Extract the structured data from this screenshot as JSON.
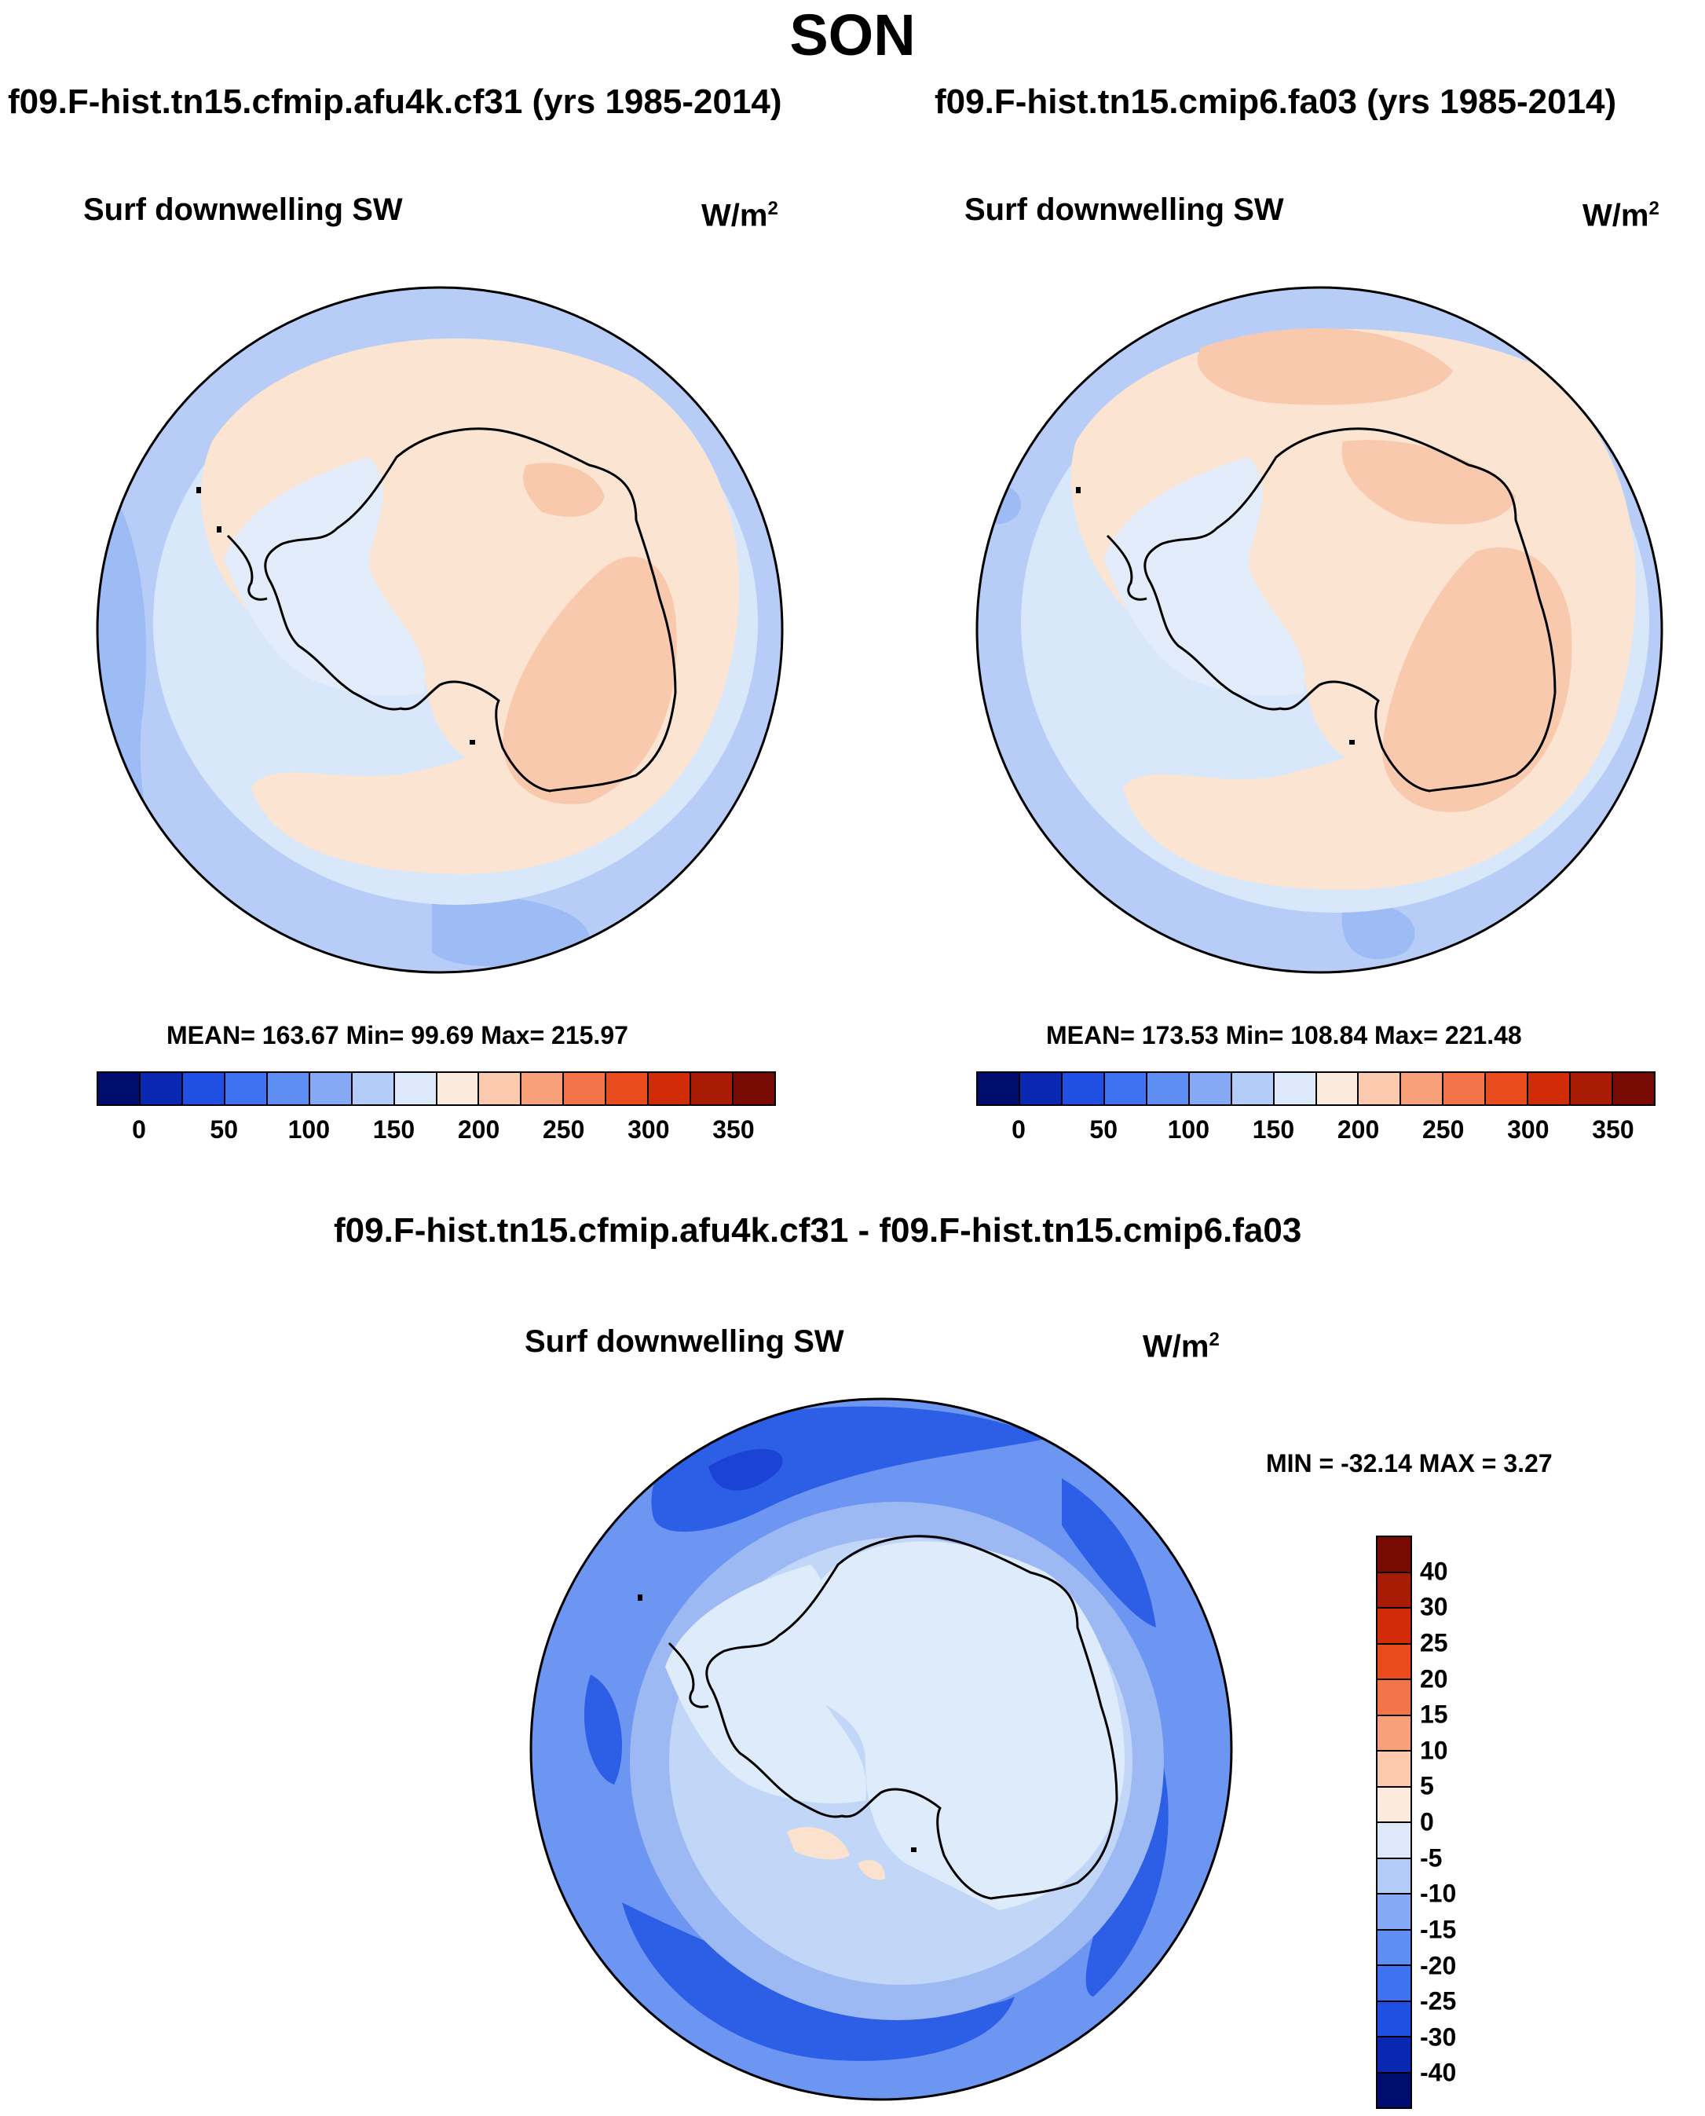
{
  "title": "SON",
  "panels": [
    {
      "case_title": "f09.F-hist.tn15.cfmip.afu4k.cf31 (yrs 1985-2014)",
      "variable": "Surf downwelling SW",
      "units_base": "W/m",
      "units_exp": "2",
      "stats": "MEAN= 163.67  Min=  99.69  Max= 215.97"
    },
    {
      "case_title": "f09.F-hist.tn15.cmip6.fa03 (yrs 1985-2014)",
      "variable": "Surf downwelling SW",
      "units_base": "W/m",
      "units_exp": "2",
      "stats": "MEAN= 173.53  Min= 108.84  Max= 221.48"
    }
  ],
  "diff": {
    "case_title": "f09.F-hist.tn15.cfmip.afu4k.cf31 - f09.F-hist.tn15.cmip6.fa03",
    "variable": "Surf downwelling SW",
    "units_base": "W/m",
    "units_exp": "2",
    "stats": "MIN = -32.14 MAX =   3.27"
  },
  "colorbar_abs": {
    "colors": [
      "#000c6e",
      "#0927b0",
      "#1f4fe3",
      "#3e72f0",
      "#5f8ef2",
      "#86a9f5",
      "#b3ccf7",
      "#dde9fa",
      "#fcebdc",
      "#fbcaae",
      "#f8a07a",
      "#f4744a",
      "#ea4b1c",
      "#d12c07",
      "#a81b05",
      "#770a02"
    ],
    "labels": [
      "0",
      "50",
      "100",
      "150",
      "200",
      "250",
      "300",
      "350"
    ]
  },
  "colorbar_diff": {
    "colors": [
      "#770a02",
      "#a81b05",
      "#d12c07",
      "#ea4b1c",
      "#f4744a",
      "#f8a07a",
      "#fbcaae",
      "#fcebdc",
      "#dde9fa",
      "#b3ccf7",
      "#86a9f5",
      "#5f8ef2",
      "#3e72f0",
      "#1f4fe3",
      "#0927b0",
      "#000c6e"
    ],
    "labels": [
      "40",
      "30",
      "25",
      "20",
      "15",
      "10",
      "5",
      "0",
      "-5",
      "-10",
      "-15",
      "-20",
      "-25",
      "-30",
      "-40"
    ]
  },
  "map_colors": {
    "ocean_far": "#b7cdf7",
    "ocean_mid": "#d9e7fa",
    "ocean_edge": "#9dbbf4",
    "land_light": "#fbe5d2",
    "land_warm": "#f9c9ad",
    "ice_shelf": "#e2ecfa",
    "diff_outer": "#6d95f2",
    "diff_dark": "#2d5fe6",
    "diff_darker": "#1b44d6",
    "diff_mid": "#9db9f4",
    "diff_light": "#c2d6f8",
    "diff_land": "#ddebfa",
    "diff_pos": "#fbe2cf"
  }
}
